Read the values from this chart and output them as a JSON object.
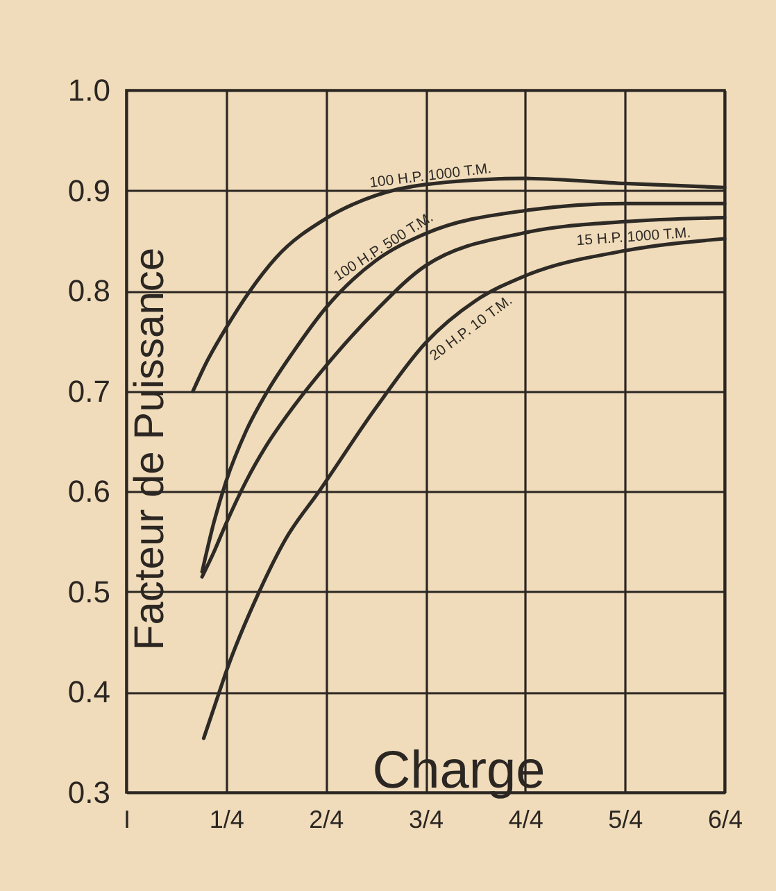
{
  "chart_data": {
    "type": "line",
    "xlabel": "Charge",
    "ylabel": "Facteur de Puissance",
    "xlim": [
      0,
      1.5
    ],
    "ylim": [
      0.3,
      1.0
    ],
    "xticks": [
      {
        "value": 0,
        "label": "I"
      },
      {
        "value": 0.25,
        "label": "1/4"
      },
      {
        "value": 0.5,
        "label": "2/4"
      },
      {
        "value": 0.75,
        "label": "3/4"
      },
      {
        "value": 1.0,
        "label": "4/4"
      },
      {
        "value": 1.25,
        "label": "5/4"
      },
      {
        "value": 1.5,
        "label": "6/4"
      }
    ],
    "yticks": [
      0.3,
      0.4,
      0.5,
      0.6,
      0.7,
      0.8,
      0.9,
      {
        "value": 1.0,
        "label": "1.0"
      }
    ],
    "grid": true,
    "line_style": "solid",
    "series": [
      {
        "name": "100 H.P. 1000 T.M.",
        "color": "#2e2a26",
        "x": [
          0.167,
          0.2,
          0.25,
          0.31,
          0.375,
          0.5,
          0.625,
          0.75,
          1.0,
          1.25,
          1.5
        ],
        "values": [
          0.7,
          0.728,
          0.763,
          0.8,
          0.833,
          0.872,
          0.895,
          0.906,
          0.912,
          0.907,
          0.903
        ]
      },
      {
        "name": "100 H.P. 500 T.M.",
        "color": "#2e2a26",
        "x": [
          0.19,
          0.22,
          0.25,
          0.3,
          0.354,
          0.42,
          0.5,
          0.625,
          0.75,
          1.0,
          1.25,
          1.5
        ],
        "values": [
          0.52,
          0.57,
          0.61,
          0.66,
          0.7,
          0.74,
          0.783,
          0.83,
          0.857,
          0.88,
          0.887,
          0.887
        ]
      },
      {
        "name": "15 H.P. 1000 T.M.",
        "color": "#2e2a26",
        "x": [
          0.19,
          0.22,
          0.25,
          0.3,
          0.35,
          0.42,
          0.5,
          0.625,
          0.75,
          1.0,
          1.25,
          1.5
        ],
        "values": [
          0.515,
          0.54,
          0.568,
          0.61,
          0.645,
          0.685,
          0.725,
          0.78,
          0.825,
          0.858,
          0.869,
          0.873
        ]
      },
      {
        "name": "20 H.P. 10 T.M.",
        "color": "#2e2a26",
        "x": [
          0.194,
          0.233,
          0.25,
          0.333,
          0.4,
          0.483,
          0.625,
          0.75,
          0.875,
          1.0,
          1.25,
          1.5
        ],
        "values": [
          0.354,
          0.4,
          0.42,
          0.5,
          0.553,
          0.6,
          0.683,
          0.748,
          0.79,
          0.815,
          0.84,
          0.852
        ]
      }
    ]
  }
}
